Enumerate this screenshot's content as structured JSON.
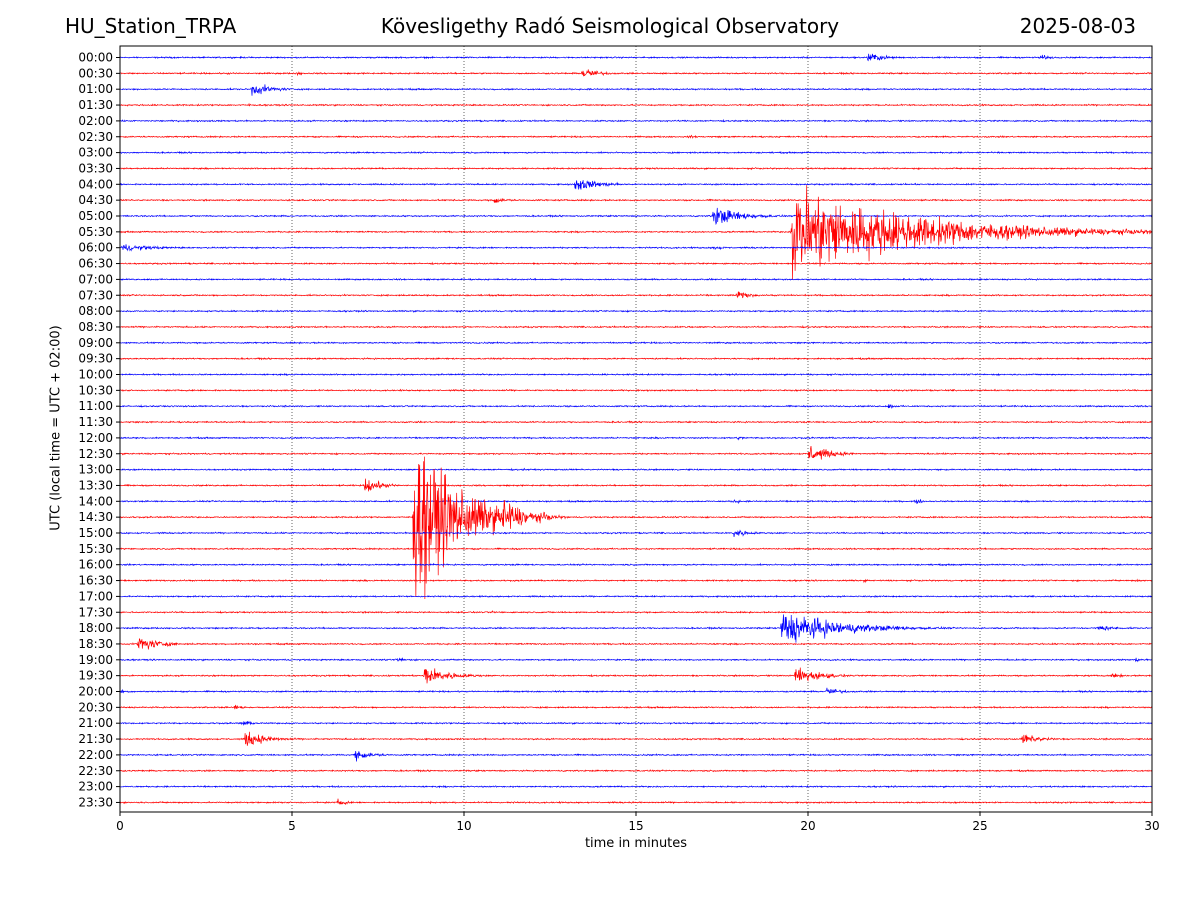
{
  "header": {
    "station": "HU_Station_TRPA",
    "title": "Kövesligethy Radó Seismological Observatory",
    "date": "2025-08-03"
  },
  "chart_data": {
    "type": "line",
    "subtype": "helicorder",
    "xlabel": "time in minutes",
    "ylabel": "UTC (local time = UTC + 02:00)",
    "xlim": [
      0,
      30
    ],
    "xticks": [
      0,
      5,
      10,
      15,
      20,
      25,
      30
    ],
    "grid": "vertical dotted at x ticks",
    "series_colors": [
      "#0000ff",
      "#ff0000"
    ],
    "rows": [
      "00:00",
      "00:30",
      "01:00",
      "01:30",
      "02:00",
      "02:30",
      "03:00",
      "03:30",
      "04:00",
      "04:30",
      "05:00",
      "05:30",
      "06:00",
      "06:30",
      "07:00",
      "07:30",
      "08:00",
      "08:30",
      "09:00",
      "09:30",
      "10:00",
      "10:30",
      "11:00",
      "11:30",
      "12:00",
      "12:30",
      "13:00",
      "13:30",
      "14:00",
      "14:30",
      "15:00",
      "15:30",
      "16:00",
      "16:30",
      "17:00",
      "17:30",
      "18:00",
      "18:30",
      "19:00",
      "19:30",
      "20:00",
      "20:30",
      "21:00",
      "21:30",
      "22:00",
      "22:30",
      "23:00",
      "23:30"
    ],
    "events": [
      {
        "row": "00:00",
        "t": 21.7,
        "amp": 0.8,
        "dur": 1.5
      },
      {
        "row": "00:00",
        "t": 26.7,
        "amp": 0.5,
        "dur": 1.0
      },
      {
        "row": "00:30",
        "t": 3.1,
        "amp": 0.25,
        "dur": 0.4
      },
      {
        "row": "00:30",
        "t": 5.1,
        "amp": 0.3,
        "dur": 0.8
      },
      {
        "row": "00:30",
        "t": 13.4,
        "amp": 0.9,
        "dur": 1.5
      },
      {
        "row": "00:30",
        "t": 25.7,
        "amp": 0.25,
        "dur": 0.4
      },
      {
        "row": "01:00",
        "t": 3.8,
        "amp": 1.0,
        "dur": 1.8
      },
      {
        "row": "01:00",
        "t": 11.3,
        "amp": 0.2,
        "dur": 0.4
      },
      {
        "row": "01:00",
        "t": 26.4,
        "amp": 0.2,
        "dur": 0.4
      },
      {
        "row": "01:30",
        "t": 3.7,
        "amp": 0.3,
        "dur": 0.3
      },
      {
        "row": "02:30",
        "t": 16.5,
        "amp": 0.2,
        "dur": 1.5
      },
      {
        "row": "03:30",
        "t": 9.8,
        "amp": 0.15,
        "dur": 0.8
      },
      {
        "row": "04:00",
        "t": 13.2,
        "amp": 1.0,
        "dur": 2.2
      },
      {
        "row": "04:30",
        "t": 10.8,
        "amp": 0.6,
        "dur": 1.2
      },
      {
        "row": "05:00",
        "t": 17.2,
        "amp": 1.5,
        "dur": 2.5
      },
      {
        "row": "05:30",
        "t": 19.5,
        "amp": 6.5,
        "dur": 10.5
      },
      {
        "row": "06:00",
        "t": 0.0,
        "amp": 0.5,
        "dur": 3.5
      },
      {
        "row": "06:00",
        "t": 17.2,
        "amp": 0.3,
        "dur": 1.5
      },
      {
        "row": "07:30",
        "t": 17.9,
        "amp": 0.7,
        "dur": 1.2
      },
      {
        "row": "08:30",
        "t": 16.5,
        "amp": 0.2,
        "dur": 0.5
      },
      {
        "row": "11:00",
        "t": 22.3,
        "amp": 0.5,
        "dur": 0.6
      },
      {
        "row": "12:00",
        "t": 17.9,
        "amp": 0.35,
        "dur": 0.8
      },
      {
        "row": "12:30",
        "t": 20.0,
        "amp": 1.4,
        "dur": 1.8
      },
      {
        "row": "12:30",
        "t": 0.6,
        "amp": 0.15,
        "dur": 1.0
      },
      {
        "row": "13:00",
        "t": 11.7,
        "amp": 0.25,
        "dur": 0.3
      },
      {
        "row": "13:30",
        "t": 7.1,
        "amp": 1.3,
        "dur": 1.3
      },
      {
        "row": "14:00",
        "t": 17.8,
        "amp": 0.35,
        "dur": 0.8
      },
      {
        "row": "14:00",
        "t": 23.1,
        "amp": 0.5,
        "dur": 0.6
      },
      {
        "row": "14:30",
        "t": 8.5,
        "amp": 12.0,
        "dur": 4.0
      },
      {
        "row": "14:30",
        "t": 11.1,
        "amp": 3.0,
        "dur": 2.0
      },
      {
        "row": "14:30",
        "t": 9.5,
        "amp": 0.6,
        "dur": 6.0
      },
      {
        "row": "15:00",
        "t": 17.8,
        "amp": 0.8,
        "dur": 1.2
      },
      {
        "row": "16:00",
        "t": 7.2,
        "amp": 0.2,
        "dur": 0.4
      },
      {
        "row": "16:00",
        "t": 9.0,
        "amp": 0.3,
        "dur": 0.5
      },
      {
        "row": "16:30",
        "t": 21.6,
        "amp": 0.25,
        "dur": 0.5
      },
      {
        "row": "16:30",
        "t": 29.5,
        "amp": 0.3,
        "dur": 0.6
      },
      {
        "row": "17:00",
        "t": 28.0,
        "amp": 0.2,
        "dur": 0.6
      },
      {
        "row": "17:30",
        "t": 10.8,
        "amp": 0.3,
        "dur": 0.3
      },
      {
        "row": "18:00",
        "t": 19.2,
        "amp": 2.5,
        "dur": 5.0
      },
      {
        "row": "18:00",
        "t": 28.4,
        "amp": 0.5,
        "dur": 1.6
      },
      {
        "row": "18:30",
        "t": 0.5,
        "amp": 1.3,
        "dur": 1.8
      },
      {
        "row": "19:00",
        "t": 8.0,
        "amp": 0.5,
        "dur": 0.8
      },
      {
        "row": "19:00",
        "t": 29.5,
        "amp": 0.4,
        "dur": 0.5
      },
      {
        "row": "19:30",
        "t": 8.8,
        "amp": 1.5,
        "dur": 2.2
      },
      {
        "row": "19:30",
        "t": 19.6,
        "amp": 1.5,
        "dur": 2.0
      },
      {
        "row": "19:30",
        "t": 28.8,
        "amp": 0.4,
        "dur": 1.2
      },
      {
        "row": "20:00",
        "t": 0.0,
        "amp": 0.3,
        "dur": 1.0
      },
      {
        "row": "20:00",
        "t": 20.5,
        "amp": 0.6,
        "dur": 1.5
      },
      {
        "row": "20:30",
        "t": 3.3,
        "amp": 0.4,
        "dur": 1.0
      },
      {
        "row": "21:00",
        "t": 3.5,
        "amp": 0.5,
        "dur": 1.0
      },
      {
        "row": "21:30",
        "t": 3.6,
        "amp": 1.2,
        "dur": 2.0
      },
      {
        "row": "21:30",
        "t": 26.2,
        "amp": 0.8,
        "dur": 1.8
      },
      {
        "row": "22:00",
        "t": 6.8,
        "amp": 0.8,
        "dur": 1.6
      },
      {
        "row": "22:00",
        "t": 29.0,
        "amp": 0.2,
        "dur": 0.5
      },
      {
        "row": "22:30",
        "t": 24.7,
        "amp": 0.3,
        "dur": 0.2
      },
      {
        "row": "23:30",
        "t": 6.3,
        "amp": 0.6,
        "dur": 0.8
      },
      {
        "row": "23:30",
        "t": 9.0,
        "amp": 0.2,
        "dur": 0.6
      },
      {
        "row": "23:30",
        "t": 11.3,
        "amp": 0.2,
        "dur": 0.6
      }
    ]
  }
}
